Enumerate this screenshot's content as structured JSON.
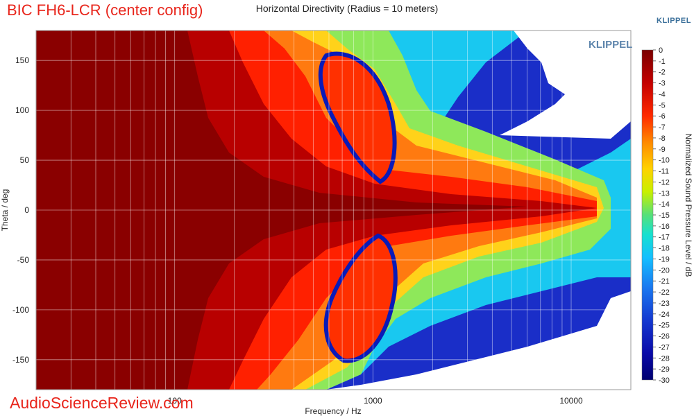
{
  "product_title": "BIC FH6-LCR (center config)",
  "site_label": "AudioScienceReview.com",
  "brand": "KLIPPEL",
  "colors": {
    "title_red": "#e8251b",
    "brand_blue": "#3a6f9a"
  },
  "chart_data": {
    "type": "heatmap",
    "title": "Horizontal Directivity (Radius = 10 meters)",
    "xlabel": "Frequency / Hz",
    "ylabel": "Theta / deg",
    "colorbar_label": "Normalized Sound Pressure Level / dB",
    "x_scale": "log",
    "xlim": [
      20,
      20000
    ],
    "ylim": [
      -180,
      180
    ],
    "zlim": [
      -30,
      0
    ],
    "x_ticks": [
      100,
      1000,
      10000
    ],
    "x_tick_labels": [
      "100",
      "1000",
      "10000"
    ],
    "y_ticks": [
      150,
      100,
      50,
      0,
      -50,
      -100,
      -150
    ],
    "y_tick_labels": [
      "150",
      "100",
      "50",
      "0",
      "-50",
      "-100",
      "-150"
    ],
    "colorbar_ticks": [
      "0",
      "-1",
      "-2",
      "-3",
      "-4",
      "-5",
      "-6",
      "-7",
      "-8",
      "-9",
      "-10",
      "-11",
      "-12",
      "-13",
      "-14",
      "-15",
      "-16",
      "-17",
      "-18",
      "-19",
      "-20",
      "-21",
      "-22",
      "-23",
      "-24",
      "-25",
      "-26",
      "-27",
      "-28",
      "-29",
      "-30"
    ],
    "grid": true,
    "beamwidth_contours": [
      {
        "frequency_hz": 20,
        "edge_deg": 180
      },
      {
        "frequency_hz": 200,
        "edge_deg": 175
      },
      {
        "frequency_hz": 300,
        "edge_deg": 150
      },
      {
        "frequency_hz": 400,
        "edge_deg": 115
      },
      {
        "frequency_hz": 600,
        "edge_deg": 95
      },
      {
        "frequency_hz": 1000,
        "edge_deg": 65
      },
      {
        "frequency_hz": 1300,
        "edge_deg": 40
      },
      {
        "frequency_hz": 2000,
        "edge_deg": 55
      },
      {
        "frequency_hz": 3000,
        "edge_deg": 65
      },
      {
        "frequency_hz": 5000,
        "edge_deg": 60
      },
      {
        "frequency_hz": 10000,
        "edge_deg": 40
      },
      {
        "frequency_hz": 15000,
        "edge_deg": 20
      },
      {
        "frequency_hz": 20000,
        "edge_deg": 25
      }
    ]
  }
}
